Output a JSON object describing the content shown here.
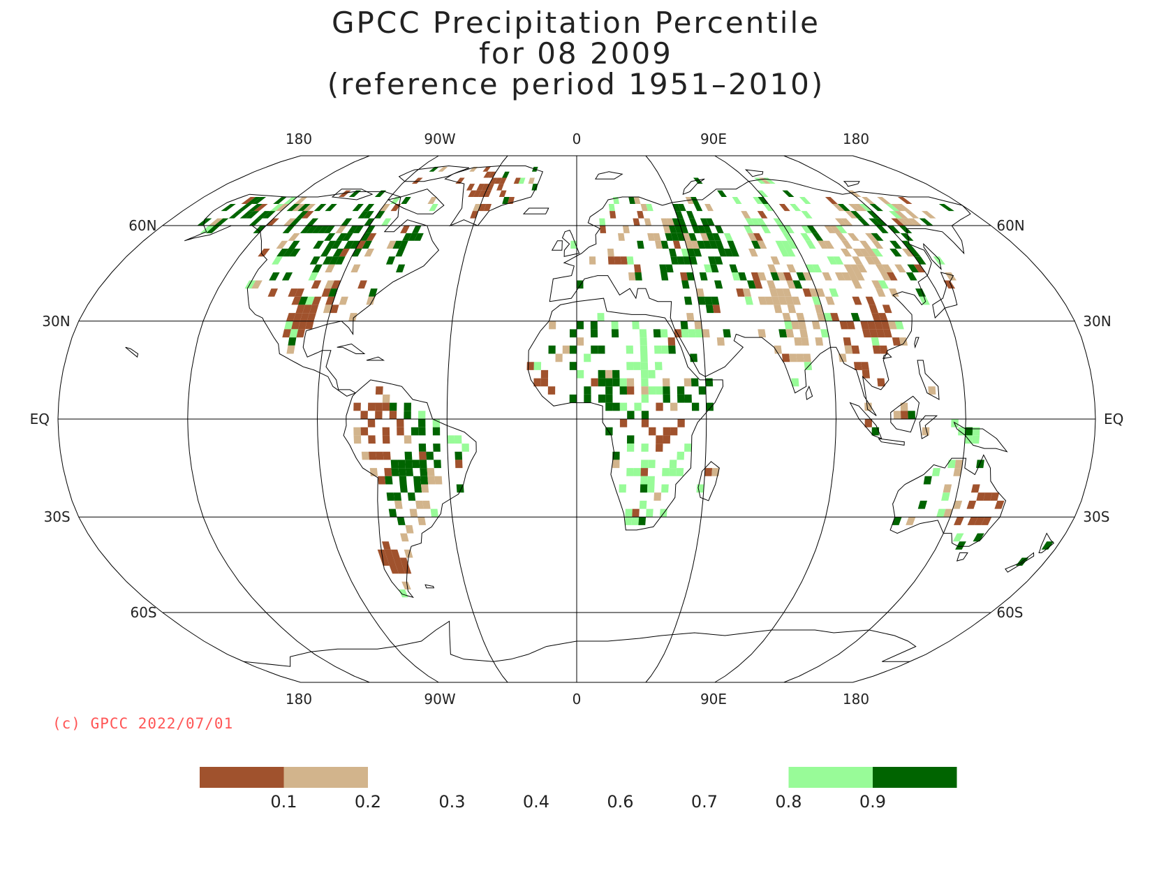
{
  "title": {
    "line1": "GPCC Precipitation Percentile",
    "line2": "for 08 2009",
    "line3": "(reference period 1951–2010)"
  },
  "map": {
    "projection": "robinson",
    "top_lon_labels": [
      "180",
      "90W",
      "0",
      "90E",
      "180"
    ],
    "bottom_lon_labels": [
      "180",
      "90W",
      "0",
      "90E",
      "180"
    ],
    "lat_labels": [
      {
        "label": "60N",
        "lat": 60
      },
      {
        "label": "30N",
        "lat": 30
      },
      {
        "label": "EQ",
        "lat": 0
      },
      {
        "label": "30S",
        "lat": -30
      },
      {
        "label": "60S",
        "lat": -60
      }
    ]
  },
  "colors": {
    "very_dry": "#a0522d",
    "dry": "#d2b48c",
    "wet": "#98fb98",
    "very_wet": "#006400",
    "coast": "#000000"
  },
  "legend": {
    "tick_labels": [
      "0.1",
      "0.2",
      "0.3",
      "0.4",
      "0.6",
      "0.7",
      "0.8",
      "0.9"
    ],
    "bins": [
      {
        "from": 0.0,
        "to": 0.1,
        "color": "#a0522d"
      },
      {
        "from": 0.1,
        "to": 0.2,
        "color": "#d2b48c"
      },
      {
        "from": 0.8,
        "to": 0.9,
        "color": "#98fb98"
      },
      {
        "from": 0.9,
        "to": 1.0,
        "color": "#006400"
      }
    ]
  },
  "copyright": "(c) GPCC 2022/07/01"
}
